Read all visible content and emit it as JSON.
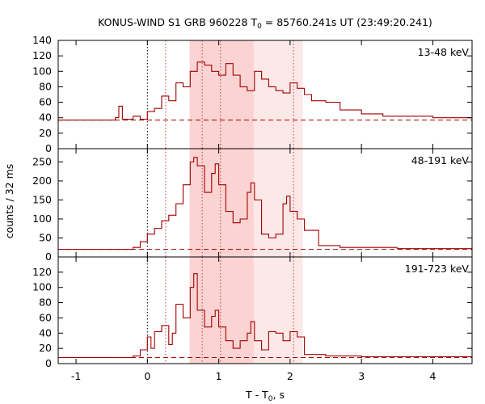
{
  "chart_data": {
    "type": "line",
    "title": {
      "prefix": "KONUS-WIND S1 GRB 960228 T",
      "sub": "0",
      "suffix": " = 85760.241s UT (23:49:20.241)"
    },
    "xlabel": {
      "prefix": "T - T",
      "sub": "0",
      "suffix": ", s"
    },
    "ylabel": "counts / 32 ms",
    "xlim": [
      -1.25,
      4.55
    ],
    "x_ticks": [
      -1,
      0,
      1,
      2,
      3,
      4
    ],
    "x_tick_labels": [
      "-1",
      "0",
      "1",
      "2",
      "3",
      "4"
    ],
    "colors": {
      "curve": "#a00000",
      "band_light": "#fde8e8",
      "band_dark": "#fbd3d3",
      "axis": "#000000"
    },
    "shaded_intervals": {
      "light": [
        0.592,
        2.176
      ],
      "dark": [
        0.592,
        1.488
      ]
    },
    "vertical_markers": [
      {
        "x": 0.0,
        "color": "black"
      },
      {
        "x": 0.256,
        "color": "red"
      },
      {
        "x": 0.768,
        "color": "red"
      },
      {
        "x": 1.024,
        "color": "red"
      },
      {
        "x": 2.048,
        "color": "red"
      }
    ],
    "panels": [
      {
        "label": "13-48 keV",
        "ylim": [
          0,
          140
        ],
        "y_ticks": [
          0,
          20,
          40,
          60,
          80,
          100,
          120,
          140
        ],
        "y_tick_labels": [
          "0",
          "20",
          "40",
          "60",
          "80",
          "100",
          "120",
          "140"
        ],
        "background": 37,
        "x": [
          -1.25,
          -0.6,
          -0.45,
          -0.4,
          -0.35,
          -0.2,
          -0.1,
          0.0,
          0.1,
          0.2,
          0.3,
          0.4,
          0.5,
          0.6,
          0.7,
          0.8,
          0.9,
          1.0,
          1.1,
          1.2,
          1.3,
          1.4,
          1.5,
          1.6,
          1.7,
          1.8,
          1.9,
          2.0,
          2.1,
          2.2,
          2.3,
          2.5,
          2.7,
          3.0,
          3.3,
          3.6,
          4.0,
          4.55
        ],
        "values": [
          37,
          37,
          40,
          55,
          38,
          42,
          38,
          48,
          52,
          68,
          62,
          85,
          80,
          100,
          112,
          108,
          100,
          95,
          110,
          95,
          80,
          75,
          100,
          90,
          80,
          75,
          72,
          85,
          78,
          70,
          62,
          60,
          50,
          45,
          42,
          42,
          40,
          38
        ]
      },
      {
        "label": "48-191 keV",
        "ylim": [
          0,
          285
        ],
        "y_ticks": [
          0,
          50,
          100,
          150,
          200,
          250
        ],
        "y_tick_labels": [
          "0",
          "50",
          "100",
          "150",
          "200",
          "250"
        ],
        "background": 20,
        "x": [
          -1.25,
          -0.5,
          -0.2,
          -0.1,
          0.0,
          0.1,
          0.2,
          0.3,
          0.4,
          0.5,
          0.6,
          0.65,
          0.7,
          0.8,
          0.9,
          0.95,
          1.0,
          1.1,
          1.2,
          1.3,
          1.4,
          1.45,
          1.5,
          1.6,
          1.7,
          1.8,
          1.9,
          1.95,
          2.0,
          2.1,
          2.2,
          2.4,
          2.7,
          3.0,
          3.5,
          4.55
        ],
        "values": [
          20,
          20,
          25,
          40,
          60,
          75,
          95,
          110,
          140,
          190,
          250,
          262,
          240,
          170,
          220,
          245,
          190,
          120,
          90,
          100,
          170,
          195,
          150,
          60,
          50,
          60,
          140,
          160,
          120,
          100,
          70,
          30,
          25,
          25,
          22,
          20
        ]
      },
      {
        "label": "191-723 keV",
        "ylim": [
          0,
          140
        ],
        "y_ticks": [
          0,
          20,
          40,
          60,
          80,
          100,
          120
        ],
        "y_tick_labels": [
          "0",
          "20",
          "40",
          "60",
          "80",
          "100",
          "120"
        ],
        "background": 8,
        "x": [
          -1.25,
          -0.5,
          -0.2,
          -0.1,
          0.0,
          0.05,
          0.1,
          0.2,
          0.3,
          0.35,
          0.4,
          0.5,
          0.6,
          0.65,
          0.7,
          0.8,
          0.9,
          0.95,
          1.0,
          1.1,
          1.2,
          1.3,
          1.4,
          1.45,
          1.5,
          1.6,
          1.7,
          1.8,
          1.9,
          2.0,
          2.1,
          2.2,
          2.5,
          3.0,
          3.5,
          4.55
        ],
        "values": [
          8,
          8,
          10,
          18,
          35,
          20,
          42,
          50,
          25,
          40,
          78,
          60,
          100,
          118,
          70,
          48,
          62,
          70,
          48,
          30,
          20,
          30,
          40,
          55,
          30,
          18,
          42,
          40,
          30,
          42,
          35,
          12,
          10,
          9,
          9,
          10
        ]
      }
    ]
  }
}
